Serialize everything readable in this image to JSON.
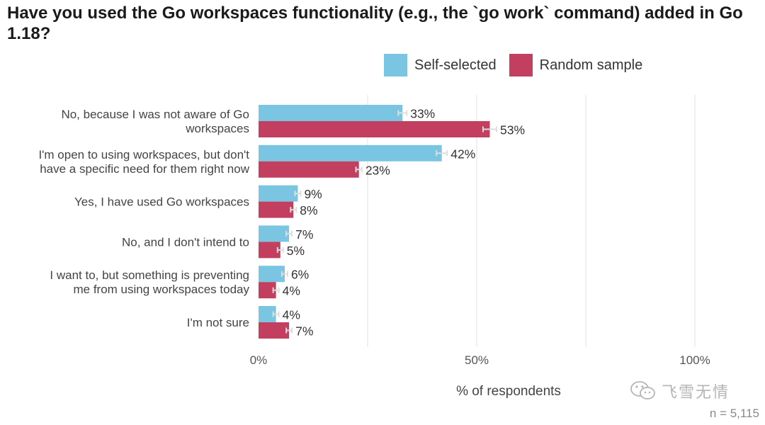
{
  "chart_data": {
    "type": "bar",
    "orientation": "horizontal",
    "title": "Have you used the Go workspaces functionality (e.g., the `go work` command) added in Go 1.18?",
    "xlabel": "% of respondents",
    "ylabel": "",
    "xlim": [
      0,
      100
    ],
    "x_ticks": [
      "0%",
      "50%",
      "100%"
    ],
    "grid": true,
    "legend_position": "top-right",
    "categories": [
      "No, because I was not aware of Go workspaces",
      "I'm open to using workspaces, but don't have a specific need for them right now",
      "Yes, I have used Go workspaces",
      "No, and I don't intend to",
      "I want to, but something is preventing me from using workspaces today",
      "I'm not sure"
    ],
    "series": [
      {
        "name": "Self-selected",
        "color": "#7ac5e1",
        "values": [
          33,
          42,
          9,
          7,
          6,
          4
        ],
        "labels": [
          "33%",
          "42%",
          "9%",
          "7%",
          "6%",
          "4%"
        ]
      },
      {
        "name": "Random sample",
        "color": "#c33f60",
        "values": [
          53,
          23,
          8,
          5,
          4,
          7
        ],
        "labels": [
          "53%",
          "23%",
          "8%",
          "5%",
          "4%",
          "7%"
        ]
      }
    ],
    "footnote": "n =  5,115"
  },
  "watermark": "飞雪无情"
}
